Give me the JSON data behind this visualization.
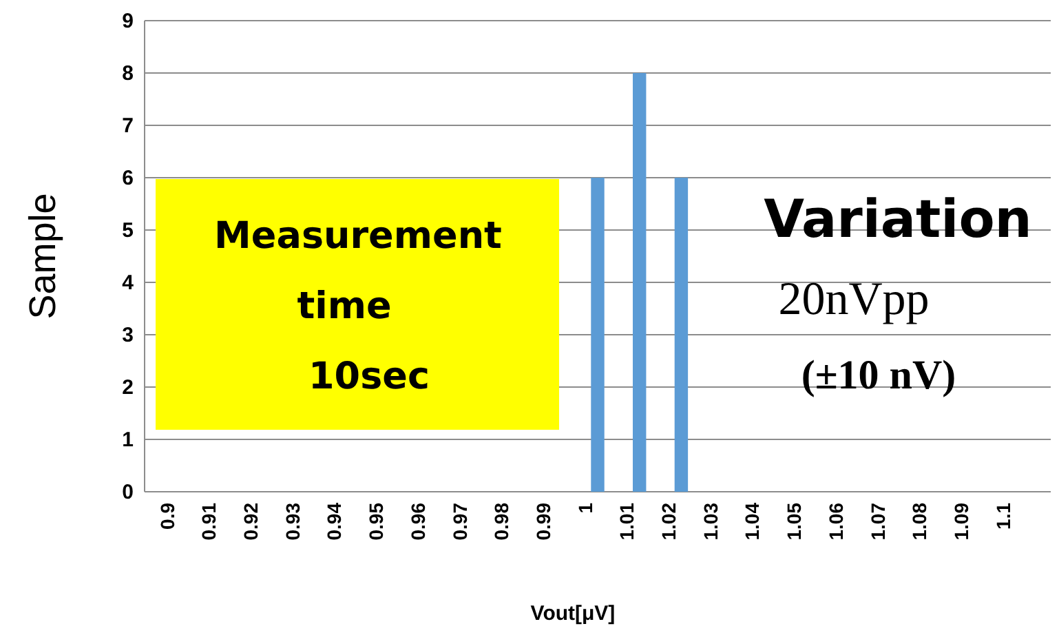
{
  "chart_data": {
    "type": "bar",
    "categories": [
      "0.9",
      "0.91",
      "0.92",
      "0.93",
      "0.94",
      "0.95",
      "0.96",
      "0.97",
      "0.98",
      "0.99",
      "1",
      "1.01",
      "1.02",
      "1.03",
      "1.04",
      "1.05",
      "1.06",
      "1.07",
      "1.08",
      "1.09",
      "1.1"
    ],
    "values": [
      0,
      0,
      0,
      0,
      0,
      0,
      0,
      0,
      0,
      0,
      6,
      8,
      6,
      0,
      0,
      0,
      0,
      0,
      0,
      0,
      0
    ],
    "color": "#5b9bd5",
    "xlabel": "Vout[μV]",
    "ylabel": "Sample",
    "ylim": [
      0,
      9
    ],
    "yticks": [
      0,
      1,
      2,
      3,
      4,
      5,
      6,
      7,
      8,
      9
    ],
    "grid": "y",
    "annotations": [
      "Measurement time 10sec",
      "Variation",
      "20nVpp",
      "(±10 nV)"
    ]
  }
}
